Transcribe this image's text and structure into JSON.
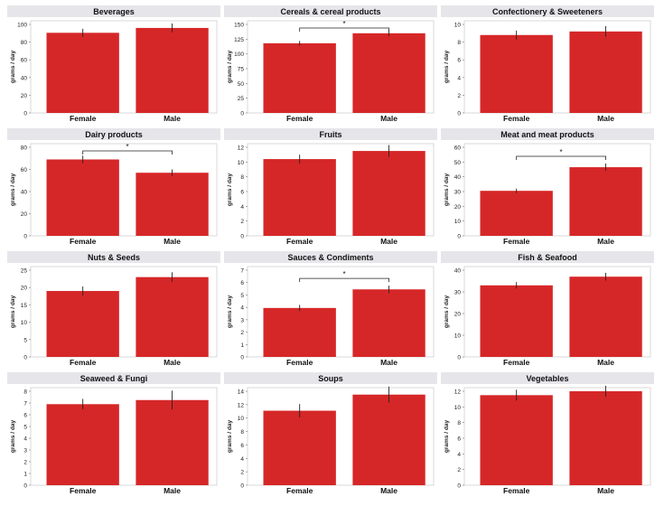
{
  "chart_data": [
    {
      "type": "bar",
      "title": "Beverages",
      "ylabel": "grams / day",
      "categories": [
        "Female",
        "Male"
      ],
      "values": [
        90.5,
        96
      ],
      "errors": [
        4.5,
        5
      ],
      "ylim": [
        0,
        100
      ],
      "yticks": [
        0,
        20,
        40,
        60,
        80,
        100
      ],
      "significance": "",
      "bar_color": "#d62728"
    },
    {
      "type": "bar",
      "title": "Cereals & cereal products",
      "ylabel": "grams / day",
      "categories": [
        "Female",
        "Male"
      ],
      "values": [
        118,
        135
      ],
      "errors": [
        4,
        5
      ],
      "ylim": [
        0,
        150
      ],
      "yticks": [
        0,
        25,
        50,
        75,
        100,
        125,
        150
      ],
      "significance": "*",
      "bar_color": "#d62728"
    },
    {
      "type": "bar",
      "title": "Confectionery & Sweeteners",
      "ylabel": "grams / day",
      "categories": [
        "Female",
        "Male"
      ],
      "values": [
        8.8,
        9.2
      ],
      "errors": [
        0.5,
        0.6
      ],
      "ylim": [
        0,
        10
      ],
      "yticks": [
        0,
        2,
        4,
        6,
        8,
        10
      ],
      "significance": "",
      "bar_color": "#d62728"
    },
    {
      "type": "bar",
      "title": "Dairy products",
      "ylabel": "grams / day",
      "categories": [
        "Female",
        "Male"
      ],
      "values": [
        69,
        57
      ],
      "errors": [
        3.5,
        3
      ],
      "ylim": [
        0,
        80
      ],
      "yticks": [
        0,
        20,
        40,
        60,
        80
      ],
      "significance": "*",
      "bar_color": "#d62728"
    },
    {
      "type": "bar",
      "title": "Fruits",
      "ylabel": "grams / day",
      "categories": [
        "Female",
        "Male"
      ],
      "values": [
        10.4,
        11.5
      ],
      "errors": [
        0.6,
        0.8
      ],
      "ylim": [
        0,
        12
      ],
      "yticks": [
        0,
        2,
        4,
        6,
        8,
        10,
        12
      ],
      "significance": "",
      "bar_color": "#d62728"
    },
    {
      "type": "bar",
      "title": "Meat and meat products",
      "ylabel": "grams / day",
      "categories": [
        "Female",
        "Male"
      ],
      "values": [
        30.5,
        46.5
      ],
      "errors": [
        1.5,
        2.5
      ],
      "ylim": [
        0,
        60
      ],
      "yticks": [
        0,
        10,
        20,
        30,
        40,
        50,
        60
      ],
      "significance": "*",
      "bar_color": "#d62728"
    },
    {
      "type": "bar",
      "title": "Nuts & Seeds",
      "ylabel": "grams / day",
      "categories": [
        "Female",
        "Male"
      ],
      "values": [
        19,
        23
      ],
      "errors": [
        1.3,
        1.4
      ],
      "ylim": [
        0,
        25
      ],
      "yticks": [
        0,
        5,
        10,
        15,
        20,
        25
      ],
      "significance": "",
      "bar_color": "#d62728"
    },
    {
      "type": "bar",
      "title": "Sauces & Condiments",
      "ylabel": "grams / day",
      "categories": [
        "Female",
        "Male"
      ],
      "values": [
        3.95,
        5.45
      ],
      "errors": [
        0.25,
        0.3
      ],
      "ylim": [
        0,
        7
      ],
      "yticks": [
        0,
        1,
        2,
        3,
        4,
        5,
        6,
        7
      ],
      "significance": "*",
      "bar_color": "#d62728"
    },
    {
      "type": "bar",
      "title": "Fish & Seafood",
      "ylabel": "grams / day",
      "categories": [
        "Female",
        "Male"
      ],
      "values": [
        33,
        37
      ],
      "errors": [
        1.5,
        1.8
      ],
      "ylim": [
        0,
        40
      ],
      "yticks": [
        0,
        10,
        20,
        30,
        40
      ],
      "significance": "",
      "bar_color": "#d62728"
    },
    {
      "type": "bar",
      "title": "Seaweed & Fungi",
      "ylabel": "grams / day",
      "categories": [
        "Female",
        "Male"
      ],
      "values": [
        6.9,
        7.25
      ],
      "errors": [
        0.45,
        0.8
      ],
      "ylim": [
        0,
        8
      ],
      "yticks": [
        0,
        1,
        2,
        3,
        4,
        5,
        6,
        7,
        8
      ],
      "significance": "",
      "bar_color": "#d62728"
    },
    {
      "type": "bar",
      "title": "Soups",
      "ylabel": "grams / day",
      "categories": [
        "Female",
        "Male"
      ],
      "values": [
        11.1,
        13.5
      ],
      "errors": [
        1,
        1.2
      ],
      "ylim": [
        0,
        14
      ],
      "yticks": [
        0,
        2,
        4,
        6,
        8,
        10,
        12,
        14
      ],
      "significance": "",
      "bar_color": "#d62728"
    },
    {
      "type": "bar",
      "title": "Vegetables",
      "ylabel": "grams / day",
      "categories": [
        "Female",
        "Male"
      ],
      "values": [
        11.5,
        12
      ],
      "errors": [
        0.7,
        0.7
      ],
      "ylim": [
        0,
        12
      ],
      "yticks": [
        0,
        2,
        4,
        6,
        8,
        10,
        12
      ],
      "significance": "",
      "bar_color": "#d62728"
    }
  ]
}
